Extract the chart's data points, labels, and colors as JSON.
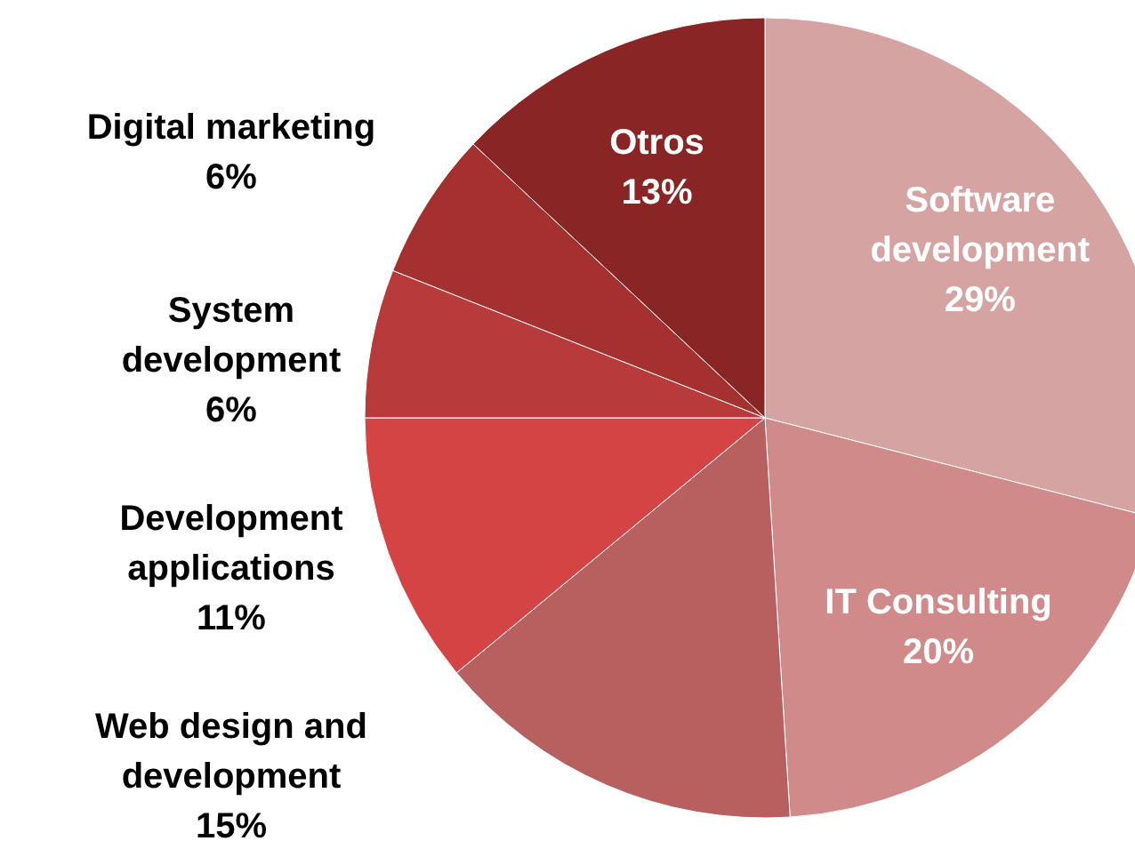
{
  "chart_data": {
    "type": "pie",
    "categories": [
      "Software development",
      "IT Consulting",
      "Web design and development",
      "Development applications",
      "System development",
      "Digital marketing",
      "Otros"
    ],
    "values": [
      29,
      20,
      15,
      11,
      6,
      6,
      13
    ],
    "value_labels": [
      "29%",
      "20%",
      "15%",
      "11%",
      "6%",
      "6%",
      "13%"
    ],
    "colors": [
      "#d6a3a3",
      "#d08a8a",
      "#b86060",
      "#d54444",
      "#b83a3a",
      "#a53030",
      "#8a2525"
    ]
  }
}
